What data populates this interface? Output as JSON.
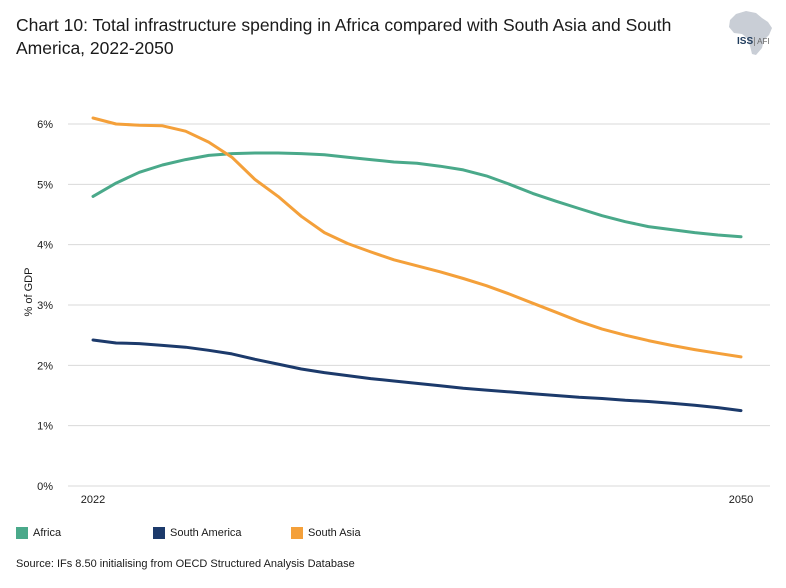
{
  "chart_data": {
    "type": "line",
    "title": "Chart 10: Total infrastructure spending in Africa compared with South Asia and South America, 2022-2050",
    "xlabel": "",
    "ylabel": "% of GDP",
    "x": [
      2022,
      2023,
      2024,
      2025,
      2026,
      2027,
      2028,
      2029,
      2030,
      2031,
      2032,
      2033,
      2034,
      2035,
      2036,
      2037,
      2038,
      2039,
      2040,
      2041,
      2042,
      2043,
      2044,
      2045,
      2046,
      2047,
      2048,
      2049,
      2050
    ],
    "x_tick_labels": [
      {
        "value": 2022,
        "label": "2022"
      },
      {
        "value": 2050,
        "label": "2050"
      }
    ],
    "ylim": [
      0,
      6.5
    ],
    "y_ticks": [
      {
        "value": 0,
        "label": "0%"
      },
      {
        "value": 1,
        "label": "1%"
      },
      {
        "value": 2,
        "label": "2%"
      },
      {
        "value": 3,
        "label": "3%"
      },
      {
        "value": 4,
        "label": "4%"
      },
      {
        "value": 5,
        "label": "5%"
      },
      {
        "value": 6,
        "label": "6%"
      }
    ],
    "grid": true,
    "legend_position": "bottom",
    "series": [
      {
        "name": "Africa",
        "color": "#4aa98a",
        "values": [
          4.8,
          5.02,
          5.2,
          5.32,
          5.41,
          5.48,
          5.51,
          5.52,
          5.52,
          5.51,
          5.49,
          5.45,
          5.41,
          5.37,
          5.35,
          5.3,
          5.24,
          5.14,
          5.0,
          4.85,
          4.72,
          4.6,
          4.48,
          4.38,
          4.3,
          4.25,
          4.2,
          4.16,
          4.13
        ]
      },
      {
        "name": "South America",
        "color": "#1c3a6b",
        "values": [
          2.42,
          2.37,
          2.36,
          2.33,
          2.3,
          2.25,
          2.19,
          2.1,
          2.02,
          1.94,
          1.88,
          1.83,
          1.78,
          1.74,
          1.7,
          1.66,
          1.62,
          1.59,
          1.56,
          1.53,
          1.5,
          1.47,
          1.45,
          1.42,
          1.4,
          1.37,
          1.34,
          1.3,
          1.25
        ]
      },
      {
        "name": "South Asia",
        "color": "#f4a03a",
        "values": [
          6.1,
          6.0,
          5.98,
          5.97,
          5.88,
          5.7,
          5.45,
          5.08,
          4.8,
          4.47,
          4.2,
          4.02,
          3.88,
          3.75,
          3.65,
          3.55,
          3.44,
          3.32,
          3.18,
          3.03,
          2.88,
          2.73,
          2.6,
          2.5,
          2.41,
          2.33,
          2.26,
          2.2,
          2.14
        ]
      }
    ]
  },
  "source": "Source: IFs 8.50 initialising from OECD Structured Analysis Database",
  "logo": {
    "main": "ISS",
    "sub": "AFI",
    "color": "#1f3b5c"
  }
}
